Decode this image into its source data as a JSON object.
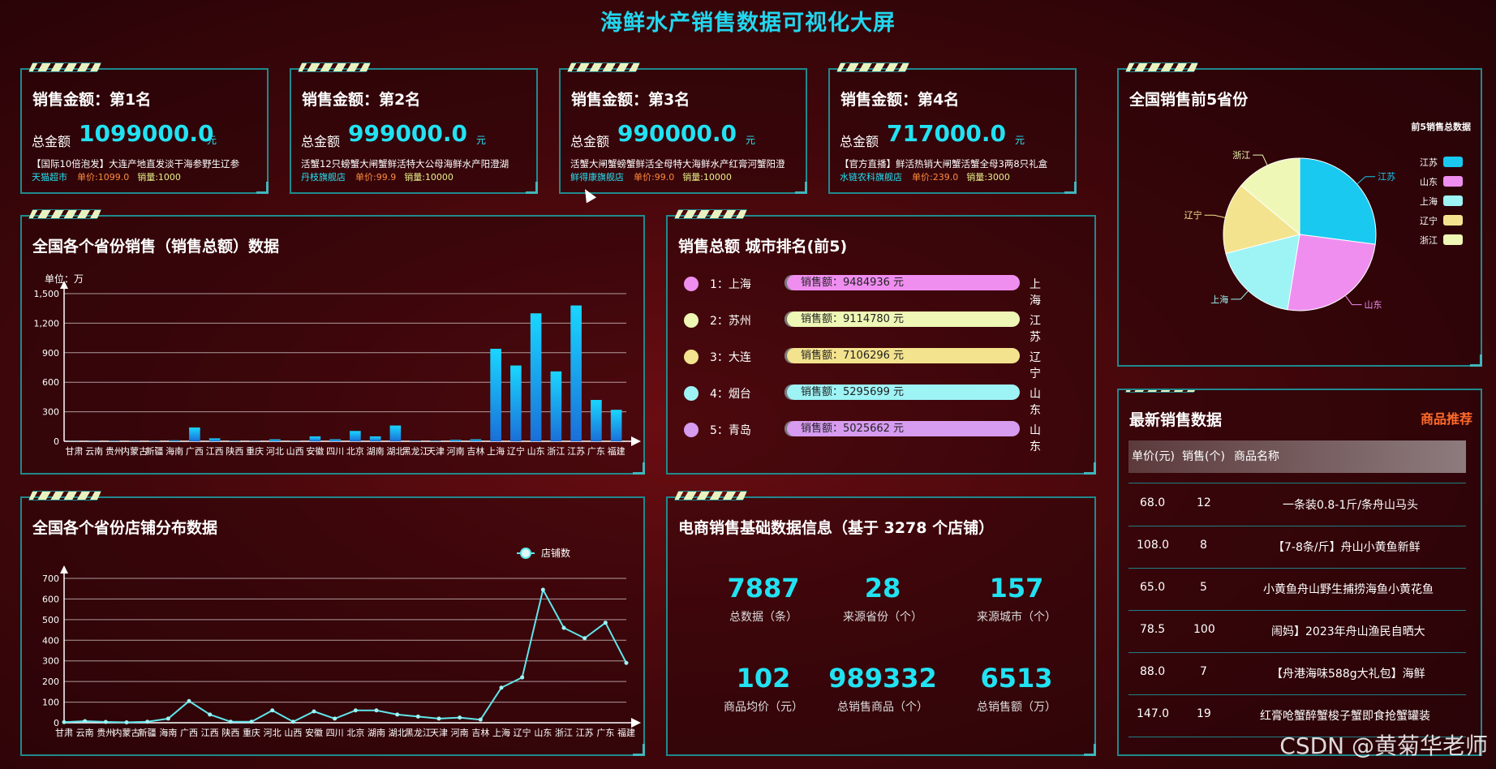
{
  "page_title": "海鲜水产销售数据可视化大屏",
  "rank_cards": [
    {
      "title": "销售金额：第1名",
      "amount_label": "总金额",
      "amount": "1099000.0",
      "unit": "元",
      "desc": "【国际10倍泡发】大连产地直发淡干海参野生辽参",
      "shop": "天猫超市",
      "price": "单价:1099.0",
      "sold": "销量:1000"
    },
    {
      "title": "销售金额：第2名",
      "amount_label": "总金额",
      "amount": "999000.0",
      "unit": "元",
      "desc": "活蟹12只螃蟹大闸蟹鲜活特大公母海鲜水产阳澄湖",
      "shop": "丹枝旗舰店",
      "price": "单价:99.9",
      "sold": "销量:10000"
    },
    {
      "title": "销售金额：第3名",
      "amount_label": "总金额",
      "amount": "990000.0",
      "unit": "元",
      "desc": "活蟹大闸蟹螃蟹鲜活全母特大海鲜水产红膏河蟹阳澄",
      "shop": "鲜得康旗舰店",
      "price": "单价:99.0",
      "sold": "销量:10000"
    },
    {
      "title": "销售金额：第4名",
      "amount_label": "总金额",
      "amount": "717000.0",
      "unit": "元",
      "desc": "【官方直播】鲜活热销大闸蟹活蟹全母3两8只礼盒",
      "shop": "水链农科旗舰店",
      "price": "单价:239.0",
      "sold": "销量:3000"
    }
  ],
  "top5": {
    "title": "全国销售前5省份",
    "legend_title": "前5销售总数据",
    "colors": {
      "江苏": "#19c9f0",
      "山东": "#f08ef0",
      "上海": "#9ef3f5",
      "辽宁": "#f4e38e",
      "浙江": "#eef7b5"
    }
  },
  "province_sales": {
    "title": "全国各个省份销售（销售总额）数据",
    "unit_label": "单位：万"
  },
  "city_rank": {
    "title": "销售总额 城市排名(前5)",
    "rows": [
      {
        "rank": "1：上海",
        "value": "销售额：9484936 元",
        "prov": "上海",
        "color": "#f08ef0"
      },
      {
        "rank": "2：苏州",
        "value": "销售额：9114780 元",
        "prov": "江苏",
        "color": "#eef7b5"
      },
      {
        "rank": "3：大连",
        "value": "销售额：7106296 元",
        "prov": "辽宁",
        "color": "#f4e38e"
      },
      {
        "rank": "4：烟台",
        "value": "销售额：5295699 元",
        "prov": "山东",
        "color": "#9ef3f5"
      },
      {
        "rank": "5：青岛",
        "value": "销售额：5025662 元",
        "prov": "山东",
        "color": "#d79bf0"
      }
    ]
  },
  "shop_dist": {
    "title": "全国各个省份店铺分布数据",
    "legend": "店铺数"
  },
  "ecom": {
    "title": "电商销售基础数据信息（基于 3278 个店铺）",
    "stats": [
      {
        "value": "7887",
        "label": "总数据（条）"
      },
      {
        "value": "28",
        "label": "来源省份（个）"
      },
      {
        "value": "157",
        "label": "来源城市（个）"
      },
      {
        "value": "102",
        "label": "商品均价（元）"
      },
      {
        "value": "989332",
        "label": "总销售商品（个）"
      },
      {
        "value": "6513",
        "label": "总销售额（万）"
      }
    ]
  },
  "latest": {
    "title": "最新销售数据",
    "link": "商品推荐",
    "headers": [
      "单价(元)",
      "销售(个)",
      "商品名称"
    ],
    "rows": [
      {
        "price": "68.0",
        "qty": "12",
        "name": "一条装0.8-1斤/条舟山马头"
      },
      {
        "price": "108.0",
        "qty": "8",
        "name": "【7-8条/斤】舟山小黄鱼新鲜"
      },
      {
        "price": "65.0",
        "qty": "5",
        "name": "小黄鱼舟山野生捕捞海鱼小黄花鱼"
      },
      {
        "price": "78.5",
        "qty": "100",
        "name": "闹妈】2023年舟山渔民自晒大"
      },
      {
        "price": "88.0",
        "qty": "7",
        "name": "【舟港海味588g大礼包】海鲜"
      },
      {
        "price": "147.0",
        "qty": "19",
        "name": "红膏呛蟹醉蟹梭子蟹即食抢蟹罐装"
      }
    ]
  },
  "watermark": "CSDN @黄菊华老师",
  "chart_data": [
    {
      "type": "bar",
      "title": "全国各个省份销售（销售总额）数据",
      "ylabel": "单位：万",
      "ylim": [
        0,
        1500
      ],
      "yticks": [
        "0",
        "300",
        "600",
        "900",
        "1,200",
        "1,500"
      ],
      "categories": [
        "甘肃",
        "云南",
        "贵州",
        "内蒙古",
        "新疆",
        "海南",
        "广西",
        "江西",
        "陕西",
        "重庆",
        "河北",
        "山西",
        "安徽",
        "四川",
        "北京",
        "湖南",
        "湖北",
        "黑龙江",
        "天津",
        "河南",
        "吉林",
        "上海",
        "辽宁",
        "山东",
        "浙江",
        "江苏",
        "广东",
        "福建"
      ],
      "values": [
        2,
        3,
        5,
        3,
        4,
        10,
        140,
        30,
        5,
        3,
        20,
        3,
        50,
        20,
        105,
        50,
        160,
        5,
        5,
        15,
        20,
        940,
        770,
        1300,
        710,
        1380,
        420,
        320
      ]
    },
    {
      "type": "line",
      "title": "全国各个省份店铺分布数据",
      "legend": [
        "店铺数"
      ],
      "ylim": [
        0,
        700
      ],
      "yticks": [
        "0",
        "100",
        "200",
        "300",
        "400",
        "500",
        "600",
        "700"
      ],
      "categories": [
        "甘肃",
        "云南",
        "贵州",
        "内蒙古",
        "新疆",
        "海南",
        "广西",
        "江西",
        "陕西",
        "重庆",
        "河北",
        "山西",
        "安徽",
        "四川",
        "北京",
        "湖南",
        "湖北",
        "黑龙江",
        "天津",
        "河南",
        "吉林",
        "上海",
        "辽宁",
        "山东",
        "浙江",
        "江苏",
        "广东",
        "福建"
      ],
      "series": [
        {
          "name": "店铺数",
          "values": [
            3,
            8,
            4,
            2,
            5,
            20,
            105,
            40,
            5,
            5,
            60,
            5,
            55,
            20,
            60,
            60,
            40,
            30,
            20,
            25,
            15,
            170,
            220,
            645,
            460,
            410,
            485,
            290
          ]
        }
      ]
    },
    {
      "type": "pie",
      "title": "全国销售前5省份",
      "legend_title": "前5销售总数据",
      "labels": [
        "江苏",
        "山东",
        "上海",
        "辽宁",
        "浙江"
      ],
      "values": [
        1380,
        1300,
        940,
        770,
        710
      ]
    }
  ]
}
